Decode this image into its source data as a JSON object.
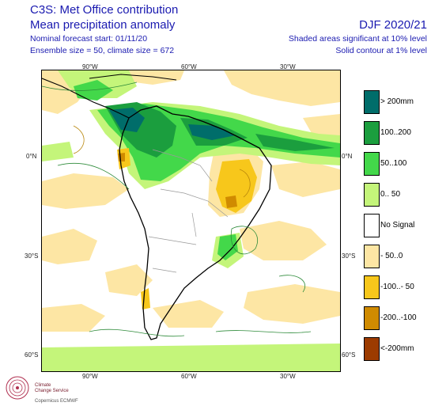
{
  "header": {
    "title_line1": "C3S: Met Office contribution",
    "title_line2": "Mean precipitation anomaly",
    "forecast_start": "Nominal forecast start: 01/11/20",
    "ensemble": "Ensemble size = 50, climate size = 672",
    "season": "DJF 2020/21",
    "shaded_note": "Shaded areas significant at 10% level",
    "contour_note": "Solid contour at 1% level"
  },
  "map": {
    "lon_labels_top": [
      "90°W",
      "60°W",
      "30°W"
    ],
    "lon_labels_bottom": [
      "90°W",
      "60°W",
      "30°W"
    ],
    "lat_labels_left": [
      "0°N",
      "30°S",
      "60°S"
    ],
    "lat_labels_right": [
      "0°N",
      "30°S",
      "60°S"
    ]
  },
  "legend": [
    {
      "label": "> 200mm",
      "color": "#006d6a"
    },
    {
      "label": "100..200",
      "color": "#1b9e3e"
    },
    {
      "label": "50..100",
      "color": "#43d84a"
    },
    {
      "label": "0.. 50",
      "color": "#c4f57a"
    },
    {
      "label": "No Signal",
      "color": "#ffffff"
    },
    {
      "label": "- 50..0",
      "color": "#fde6a4"
    },
    {
      "label": "-100..- 50",
      "color": "#f7c71b"
    },
    {
      "label": "-200..-100",
      "color": "#d08b00"
    },
    {
      "label": "<-200mm",
      "color": "#9c3b00"
    }
  ],
  "logo": {
    "line1": "Climate",
    "line2": "Change Service",
    "line3": "Copernicus  ECMWF"
  }
}
